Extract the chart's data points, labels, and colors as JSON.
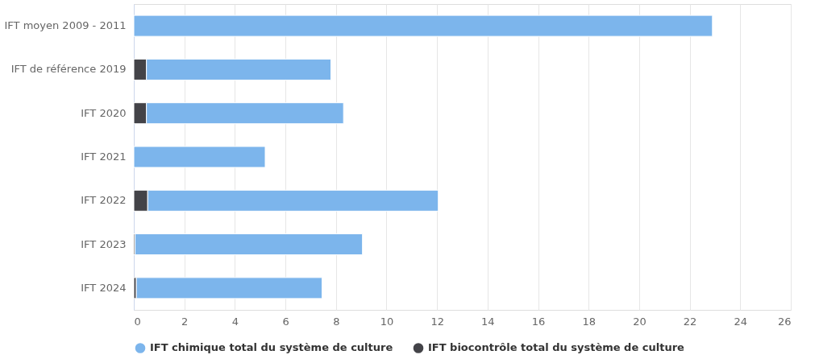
{
  "chart_data": {
    "type": "bar",
    "orientation": "horizontal",
    "stacked": true,
    "categories": [
      "IFT moyen 2009 - 2011",
      "IFT de référence 2019",
      "IFT 2020",
      "IFT 2021",
      "IFT 2022",
      "IFT 2023",
      "IFT 2024"
    ],
    "series": [
      {
        "name": "IFT biocontrôle total du système de culture",
        "color": "#434348",
        "values": [
          0,
          0.5,
          0.5,
          0,
          0.55,
          0.05,
          0.1
        ]
      },
      {
        "name": "IFT chimique total du système de culture",
        "color": "#7cb5ec",
        "values": [
          22.9,
          7.3,
          7.8,
          5.2,
          11.5,
          9.0,
          7.35
        ]
      }
    ],
    "xlim": [
      0,
      26
    ],
    "xticks": [
      0,
      2,
      4,
      6,
      8,
      10,
      12,
      14,
      16,
      18,
      20,
      22,
      24,
      26
    ],
    "grid": "x",
    "legend": "bottom"
  }
}
